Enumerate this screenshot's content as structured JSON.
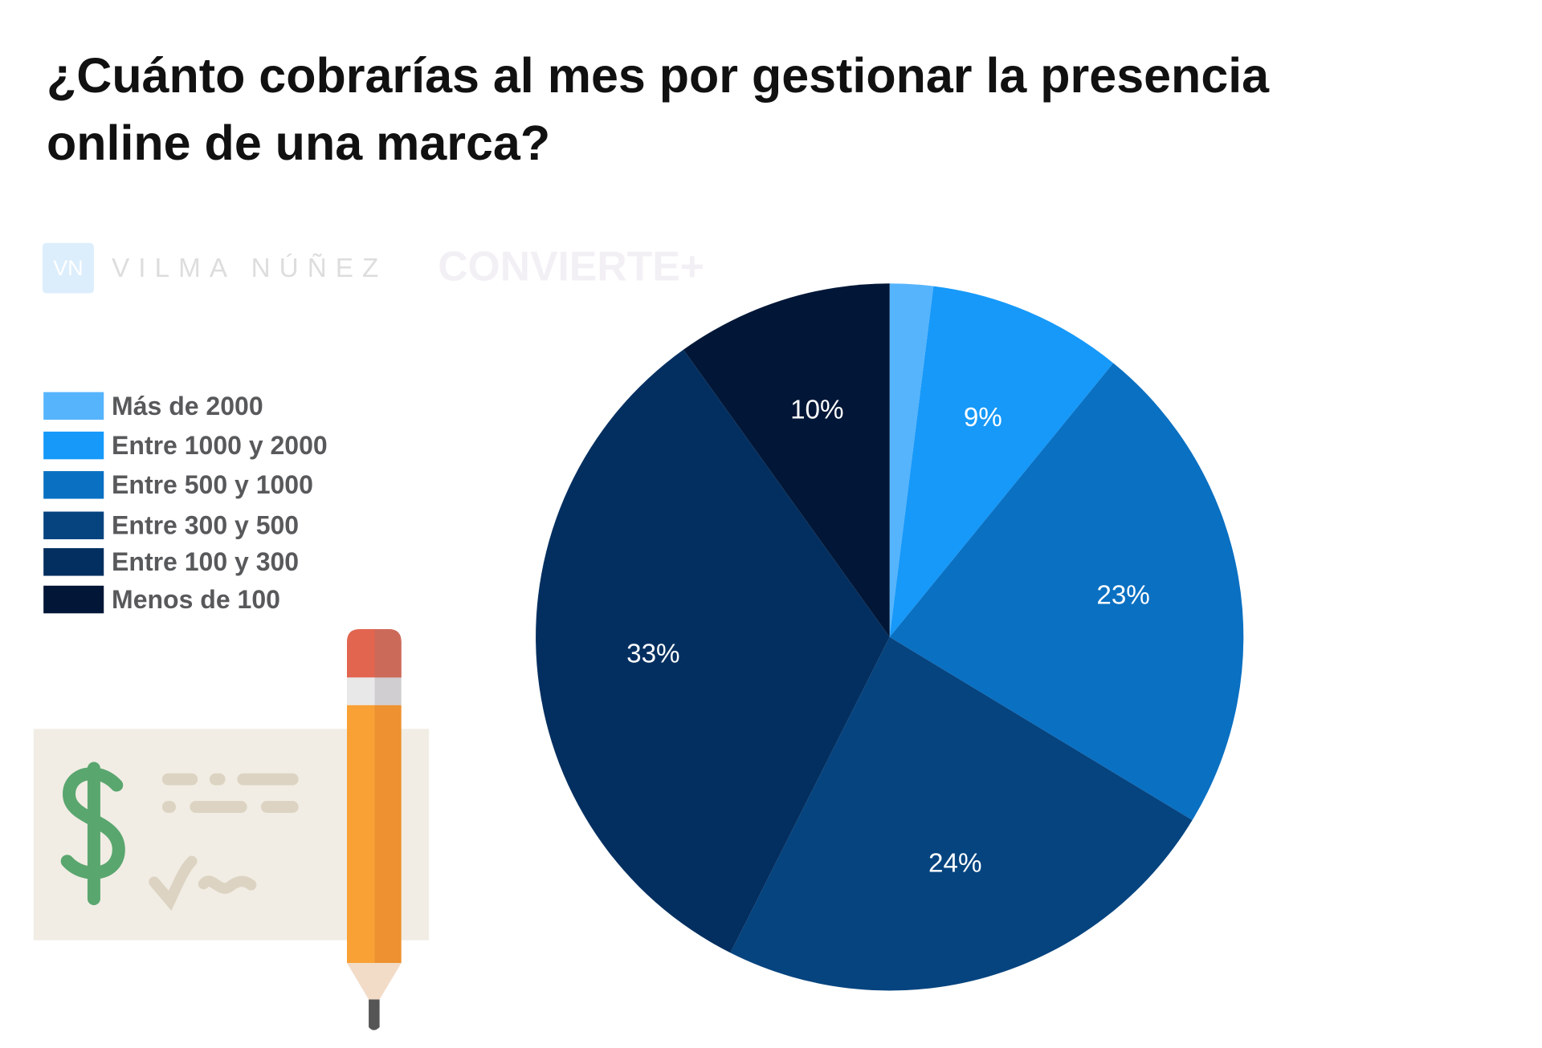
{
  "chart_data": {
    "type": "pie",
    "title": "¿Cuánto cobrarías al mes por gestionar la presencia\nonline de una marca?",
    "watermarks": [
      "VN",
      "VILMA NÚÑEZ",
      "CONVIERTE+"
    ],
    "categories": [
      "Más de 2000",
      "Entre 1000 y 2000",
      "Entre 500 y 1000",
      "Entre 300 y 500",
      "Entre 100 y 300",
      "Menos de 100"
    ],
    "values": [
      2,
      9,
      23,
      24,
      33,
      10
    ],
    "value_labels": [
      null,
      "9%",
      "23%",
      "24%",
      "33%",
      "10%"
    ],
    "colors": [
      "#56b4fd",
      "#1699f9",
      "#0a70c2",
      "#05447f",
      "#032f60",
      "#021737"
    ],
    "legend": "left"
  }
}
